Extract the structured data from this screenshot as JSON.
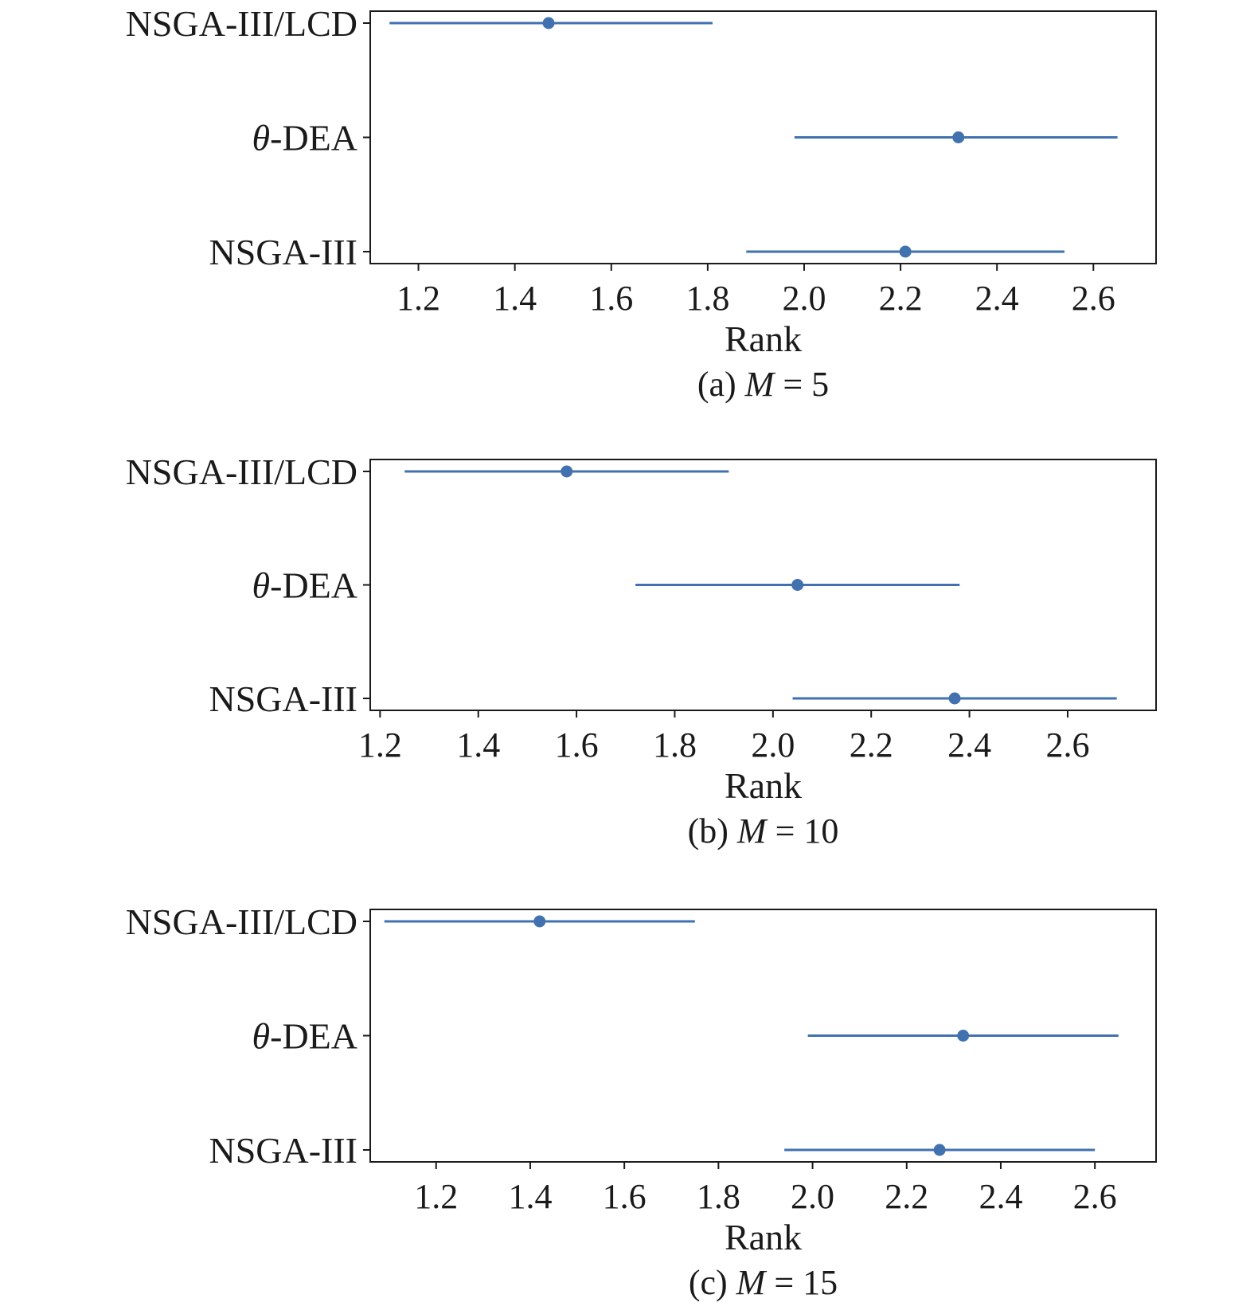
{
  "chart_data": [
    {
      "type": "errorbar",
      "caption": {
        "prefix": "(a) ",
        "var": "M",
        "suffix": " = 5"
      },
      "xlabel": "Rank",
      "xlim": [
        1.1,
        2.73
      ],
      "xticks": [
        "1.2",
        "1.4",
        "1.6",
        "1.8",
        "2.0",
        "2.2",
        "2.4",
        "2.6"
      ],
      "categories": [
        {
          "name_var": "",
          "name": "NSGA-III/LCD"
        },
        {
          "name_var": "θ",
          "name": "-DEA"
        },
        {
          "name_var": "",
          "name": "NSGA-III"
        }
      ],
      "series": [
        {
          "mean": 1.47,
          "low": 1.14,
          "high": 1.81
        },
        {
          "mean": 2.32,
          "low": 1.98,
          "high": 2.65
        },
        {
          "mean": 2.21,
          "low": 1.88,
          "high": 2.54
        }
      ],
      "color": "#4271b0",
      "grid": false
    },
    {
      "type": "errorbar",
      "caption": {
        "prefix": "(b) ",
        "var": "M",
        "suffix": " = 10"
      },
      "xlabel": "Rank",
      "xlim": [
        1.18,
        2.78
      ],
      "xticks": [
        "1.2",
        "1.4",
        "1.6",
        "1.8",
        "2.0",
        "2.2",
        "2.4",
        "2.6"
      ],
      "categories": [
        {
          "name_var": "",
          "name": "NSGA-III/LCD"
        },
        {
          "name_var": "θ",
          "name": "-DEA"
        },
        {
          "name_var": "",
          "name": "NSGA-III"
        }
      ],
      "series": [
        {
          "mean": 1.58,
          "low": 1.25,
          "high": 1.91
        },
        {
          "mean": 2.05,
          "low": 1.72,
          "high": 2.38
        },
        {
          "mean": 2.37,
          "low": 2.04,
          "high": 2.7
        }
      ],
      "color": "#4271b0",
      "grid": false
    },
    {
      "type": "errorbar",
      "caption": {
        "prefix": "(c) ",
        "var": "M",
        "suffix": " = 15"
      },
      "xlabel": "Rank",
      "xlim": [
        1.06,
        2.73
      ],
      "xticks": [
        "1.2",
        "1.4",
        "1.6",
        "1.8",
        "2.0",
        "2.2",
        "2.4",
        "2.6"
      ],
      "categories": [
        {
          "name_var": "",
          "name": "NSGA-III/LCD"
        },
        {
          "name_var": "θ",
          "name": "-DEA"
        },
        {
          "name_var": "",
          "name": "NSGA-III"
        }
      ],
      "series": [
        {
          "mean": 1.42,
          "low": 1.09,
          "high": 1.75
        },
        {
          "mean": 2.32,
          "low": 1.99,
          "high": 2.65
        },
        {
          "mean": 2.27,
          "low": 1.94,
          "high": 2.6
        }
      ],
      "color": "#4271b0",
      "grid": false
    }
  ]
}
